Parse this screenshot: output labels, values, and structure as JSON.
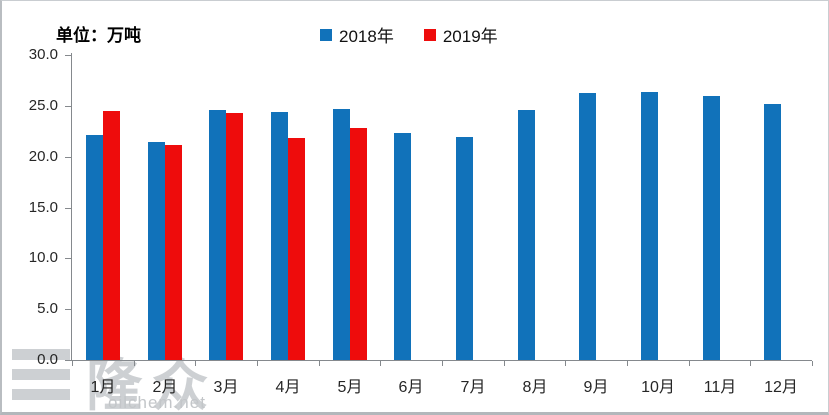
{
  "title": "单位：万吨",
  "watermark": {
    "logo_text": "隆众",
    "site": "oilchem.net"
  },
  "chart_data": {
    "type": "bar",
    "title": "单位：万吨",
    "categories": [
      "1月",
      "2月",
      "3月",
      "4月",
      "5月",
      "6月",
      "7月",
      "8月",
      "9月",
      "10月",
      "11月",
      "12月"
    ],
    "series": [
      {
        "name": "2018年",
        "color": "#1172BA",
        "values": [
          22.1,
          21.4,
          24.6,
          24.4,
          24.7,
          22.3,
          21.9,
          24.6,
          26.3,
          26.4,
          26.0,
          25.2
        ]
      },
      {
        "name": "2019年",
        "color": "#EE0C0C",
        "values": [
          24.5,
          21.1,
          24.3,
          21.8,
          22.8,
          null,
          null,
          null,
          null,
          null,
          null,
          null
        ]
      }
    ],
    "ylim": [
      0,
      30
    ],
    "ytick_step": 5,
    "ytick_labels": [
      "0.0",
      "5.0",
      "10.0",
      "15.0",
      "20.0",
      "25.0",
      "30.0"
    ],
    "xlabel": "",
    "ylabel": "",
    "grid": false,
    "legend_position": "top-center"
  }
}
